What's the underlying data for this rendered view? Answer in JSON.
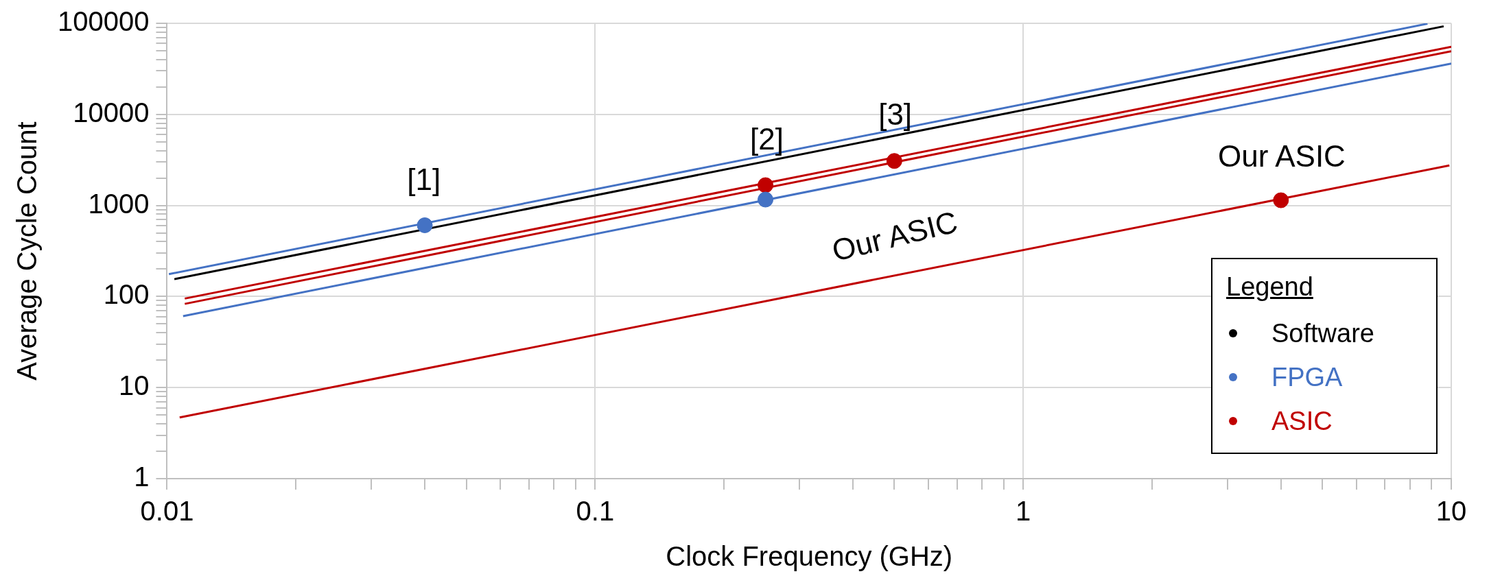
{
  "chart_data": {
    "type": "line",
    "xlabel": "Clock Frequency (GHz)",
    "ylabel": "Average Cycle Count",
    "log": "xy",
    "grid": true,
    "legend": "bottom right",
    "legend_title": "Legend",
    "xlim": [
      0.01,
      10
    ],
    "ylim": [
      1,
      100000
    ],
    "xticks": [
      0.01,
      {
        "value": 0.02,
        "label": null
      },
      {
        "value": 0.03,
        "label": null
      },
      {
        "value": 0.04,
        "label": null
      },
      {
        "value": 0.05,
        "label": null
      },
      {
        "value": 0.06,
        "label": null
      },
      {
        "value": 0.07,
        "label": null
      },
      {
        "value": 0.08,
        "label": null
      },
      {
        "value": 0.09,
        "label": null
      },
      0.1,
      {
        "value": 0.2,
        "label": null
      },
      {
        "value": 0.3,
        "label": null
      },
      {
        "value": 0.4,
        "label": null
      },
      {
        "value": 0.5,
        "label": null
      },
      {
        "value": 0.6,
        "label": null
      },
      {
        "value": 0.7,
        "label": null
      },
      {
        "value": 0.8,
        "label": null
      },
      {
        "value": 0.9,
        "label": null
      },
      1,
      {
        "value": 2,
        "label": null
      },
      {
        "value": 3,
        "label": null
      },
      {
        "value": 4,
        "label": null
      },
      {
        "value": 5,
        "label": null
      },
      {
        "value": 6,
        "label": null
      },
      {
        "value": 7,
        "label": null
      },
      {
        "value": 8,
        "label": null
      },
      {
        "value": 9,
        "label": null
      },
      10
    ],
    "yticks": [
      1,
      {
        "value": 2,
        "label": null
      },
      {
        "value": 3,
        "label": null
      },
      {
        "value": 4,
        "label": null
      },
      {
        "value": 5,
        "label": null
      },
      {
        "value": 6,
        "label": null
      },
      {
        "value": 7,
        "label": null
      },
      {
        "value": 8,
        "label": null
      },
      {
        "value": 9,
        "label": null
      },
      10,
      {
        "value": 20,
        "label": null
      },
      {
        "value": 30,
        "label": null
      },
      {
        "value": 40,
        "label": null
      },
      {
        "value": 50,
        "label": null
      },
      {
        "value": 60,
        "label": null
      },
      {
        "value": 70,
        "label": null
      },
      {
        "value": 80,
        "label": null
      },
      {
        "value": 90,
        "label": null
      },
      100,
      {
        "value": 200,
        "label": null
      },
      {
        "value": 300,
        "label": null
      },
      {
        "value": 400,
        "label": null
      },
      {
        "value": 500,
        "label": null
      },
      {
        "value": 600,
        "label": null
      },
      {
        "value": 700,
        "label": null
      },
      {
        "value": 800,
        "label": null
      },
      {
        "value": 900,
        "label": null
      },
      1000,
      {
        "value": 2000,
        "label": null
      },
      {
        "value": 3000,
        "label": null
      },
      {
        "value": 4000,
        "label": null
      },
      {
        "value": 5000,
        "label": null
      },
      {
        "value": 6000,
        "label": null
      },
      {
        "value": 7000,
        "label": null
      },
      {
        "value": 8000,
        "label": null
      },
      {
        "value": 9000,
        "label": null
      },
      10000,
      {
        "value": 20000,
        "label": null
      },
      {
        "value": 30000,
        "label": null
      },
      {
        "value": 40000,
        "label": null
      },
      {
        "value": 50000,
        "label": null
      },
      {
        "value": 60000,
        "label": null
      },
      {
        "value": 70000,
        "label": null
      },
      {
        "value": 80000,
        "label": null
      },
      {
        "value": 90000,
        "label": null
      },
      100000
    ],
    "series": [
      {
        "name": "Software",
        "color": "#000000",
        "x": [
          0.0104,
          9.6
        ],
        "values": [
          155,
          92700
        ]
      },
      {
        "name": "FPGA",
        "color": "#4472c4",
        "x": [
          0.0101,
          8.8
        ],
        "values": [
          176,
          99000
        ]
      },
      {
        "color": "#4472c4",
        "x": [
          0.0109,
          10
        ],
        "values": [
          61,
          36200
        ]
      },
      {
        "name": "ASIC",
        "color": "#c00000",
        "x": [
          0.011,
          10
        ],
        "values": [
          95,
          55200
        ]
      },
      {
        "color": "#c00000",
        "x": [
          0.011,
          10
        ],
        "values": [
          83,
          49400
        ]
      },
      {
        "color": "#c00000",
        "x": [
          0.0107,
          9.9
        ],
        "values": [
          4.7,
          2750
        ]
      },
      {
        "type": "scatter",
        "marker": "circle",
        "color": "#4472c4",
        "x": [
          0.04,
          0.25
        ],
        "values": [
          606,
          1160
        ]
      },
      {
        "type": "scatter",
        "marker": "circle",
        "color": "#c00000",
        "x": [
          0.25,
          0.5,
          4
        ],
        "values": [
          1670,
          3080,
          1140
        ]
      }
    ],
    "annotations": [
      "[1]",
      "[2]",
      "[3]",
      "Our ASIC",
      "Our ASIC"
    ]
  }
}
